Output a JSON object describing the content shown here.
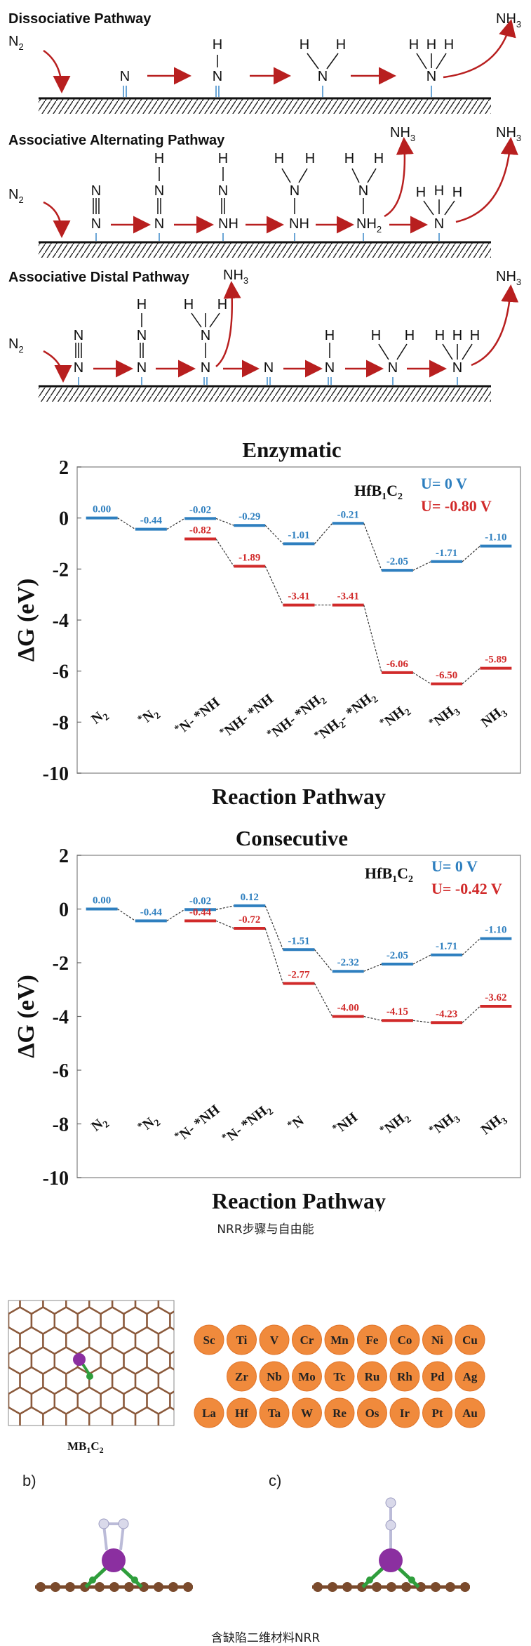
{
  "scheme": {
    "pathways": [
      {
        "title": "Dissociative Pathway"
      },
      {
        "title": "Associative Alternating Pathway"
      },
      {
        "title": "Associative Distal Pathway"
      }
    ],
    "n2": "N",
    "n2_sub": "2",
    "nh3": "NH",
    "nh3_sub": "3",
    "nh_label": "NH",
    "nh2_label": "NH",
    "nh2_sub": "2"
  },
  "charts": [
    {
      "title": "Enzymatic",
      "catalyst": "HfB",
      "catalyst_sub1": "1",
      "catalyst_mid": "C",
      "catalyst_sub2": "2",
      "legend": [
        {
          "label": "U=  0 V",
          "color": "#2e7fbf"
        },
        {
          "label": "U= -0.80 V",
          "color": "#d12a2a"
        }
      ],
      "xlabel": "Reaction Pathway",
      "ylabel": "ΔG (eV)",
      "yticks": [
        "2",
        "0",
        "-2",
        "-4",
        "-6",
        "-8",
        "-10"
      ],
      "steps": [
        {
          "main": "N",
          "sub": "2",
          "pre": ""
        },
        {
          "main": "N",
          "sub": "2",
          "pre": "*"
        },
        {
          "main": "N- *NH",
          "sub": "",
          "pre": "*"
        },
        {
          "main": "NH- *NH",
          "sub": "",
          "pre": "*"
        },
        {
          "main": "NH- *NH",
          "sub": "2",
          "pre": "*"
        },
        {
          "main": "NH",
          "sub": "2",
          "pre": "*",
          "main2": "- *NH",
          "sub2": "2"
        },
        {
          "main": "NH",
          "sub": "2",
          "pre": "*"
        },
        {
          "main": "NH",
          "sub": "3",
          "pre": "*"
        },
        {
          "main": "NH",
          "sub": "3",
          "pre": ""
        }
      ],
      "chart_data": {
        "type": "line",
        "ylim": [
          -10,
          2
        ],
        "series": [
          {
            "name": "U=  0 V",
            "values": [
              0.0,
              -0.44,
              -0.02,
              -0.29,
              -1.01,
              -0.21,
              -2.05,
              -1.71,
              -1.1
            ],
            "labels": [
              "0.00",
              "-0.44",
              "-0.02",
              "-0.29",
              "-1.01",
              "-0.21",
              "-2.05",
              "-1.71",
              "-1.10"
            ]
          },
          {
            "name": "U= -0.80 V",
            "values": [
              null,
              null,
              -0.82,
              -1.89,
              -3.41,
              -3.41,
              -6.06,
              -6.5,
              -5.89
            ],
            "labels": [
              "",
              "",
              "-0.82",
              "-1.89",
              "-3.41",
              "-3.41",
              "-6.06",
              "-6.50",
              "-5.89"
            ]
          }
        ]
      }
    },
    {
      "title": "Consecutive",
      "catalyst": "HfB",
      "catalyst_sub1": "1",
      "catalyst_mid": "C",
      "catalyst_sub2": "2",
      "legend": [
        {
          "label": "U=  0 V",
          "color": "#2e7fbf"
        },
        {
          "label": "U= -0.42 V",
          "color": "#d12a2a"
        }
      ],
      "xlabel": "Reaction Pathway",
      "ylabel": "ΔG (eV)",
      "yticks": [
        "2",
        "0",
        "-2",
        "-4",
        "-6",
        "-8",
        "-10"
      ],
      "steps": [
        {
          "main": "N",
          "sub": "2",
          "pre": ""
        },
        {
          "main": "N",
          "sub": "2",
          "pre": "*"
        },
        {
          "main": "N- *NH",
          "sub": "",
          "pre": "*"
        },
        {
          "main": "N- *NH",
          "sub": "2",
          "pre": "*"
        },
        {
          "main": "N",
          "sub": "",
          "pre": "*"
        },
        {
          "main": "NH",
          "sub": "",
          "pre": "*"
        },
        {
          "main": "NH",
          "sub": "2",
          "pre": "*"
        },
        {
          "main": "NH",
          "sub": "3",
          "pre": "*"
        },
        {
          "main": "NH",
          "sub": "3",
          "pre": ""
        }
      ],
      "chart_data": {
        "type": "line",
        "ylim": [
          -10,
          2
        ],
        "series": [
          {
            "name": "U=  0 V",
            "values": [
              0.0,
              -0.44,
              -0.02,
              0.12,
              -1.51,
              -2.32,
              -2.05,
              -1.71,
              -1.1
            ],
            "labels": [
              "0.00",
              "-0.44",
              "-0.02",
              "0.12",
              "-1.51",
              "-2.32",
              "-2.05",
              "-1.71",
              "-1.10"
            ]
          },
          {
            "name": "U= -0.42 V",
            "values": [
              null,
              null,
              -0.44,
              -0.72,
              -2.77,
              -4.0,
              -4.15,
              -4.23,
              -3.62
            ],
            "labels": [
              "",
              "",
              "-0.44",
              "-0.72",
              "-2.77",
              "-4.00",
              "-4.15",
              "-4.23",
              "-3.62"
            ]
          }
        ]
      }
    }
  ],
  "caption1": "NRR步骤与自由能",
  "structure_label": "MB",
  "structure_sub1": "1",
  "structure_mid": "C",
  "structure_sub2": "2",
  "elements": [
    [
      "Sc",
      "Ti",
      "V",
      "Cr",
      "Mn",
      "Fe",
      "Co",
      "Ni",
      "Cu"
    ],
    [
      "Zr",
      "Nb",
      "Mo",
      "Tc",
      "Ru",
      "Rh",
      "Pd",
      "Ag"
    ],
    [
      "La",
      "Hf",
      "Ta",
      "W",
      "Re",
      "Os",
      "Ir",
      "Pt",
      "Au"
    ]
  ],
  "panel_b": "b)",
  "panel_c": "c)",
  "caption2": "含缺陷二维材料NRR"
}
